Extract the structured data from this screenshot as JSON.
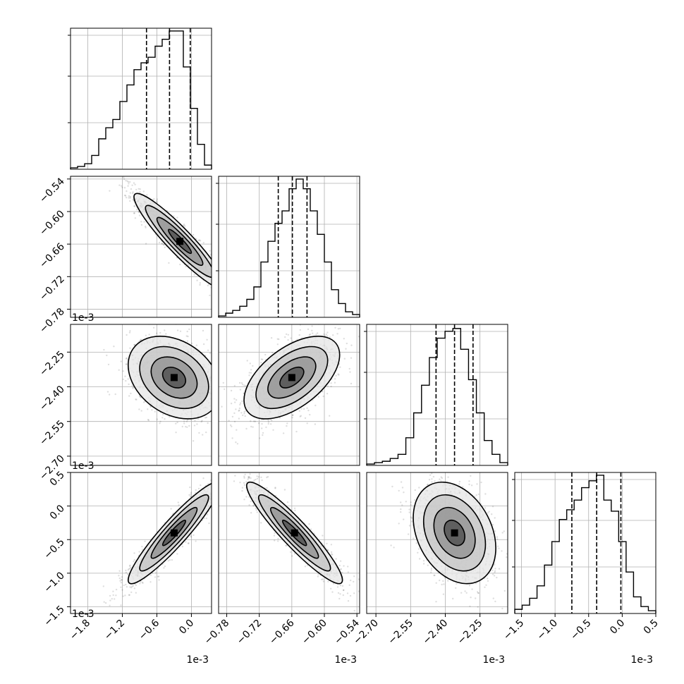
{
  "chart_data": {
    "type": "scatter",
    "subtype": "corner-plot",
    "grid": true,
    "parameters": [
      {
        "offset": "1e-3",
        "ticks": [
          "−1.8",
          "−1.2",
          "−0.6",
          "0.0"
        ],
        "range": [
          -2.1,
          0.35
        ]
      },
      {
        "offset": "1e-3",
        "ticks": [
          "−0.78",
          "−0.72",
          "−0.66",
          "−0.60",
          "−0.54"
        ],
        "range": [
          -0.795,
          -0.535
        ]
      },
      {
        "offset": "1e-3",
        "ticks": [
          "−2.70",
          "−2.55",
          "−2.40",
          "−2.25"
        ],
        "range": [
          -2.74,
          -2.13
        ]
      },
      {
        "offset": "1e-3",
        "ticks": [
          "−1.5",
          "−1.0",
          "−0.5",
          "0.0",
          "0.5"
        ],
        "range": [
          -1.6,
          0.5
        ]
      }
    ],
    "histograms": [
      {
        "param": 0,
        "quantiles": [
          -0.78,
          -0.38,
          -0.02
        ],
        "counts": [
          1,
          2,
          4,
          10,
          22,
          30,
          36,
          49,
          61,
          72,
          77,
          81,
          89,
          94,
          100,
          100,
          74,
          44,
          18,
          3
        ],
        "ymax": 102
      },
      {
        "param": 1,
        "quantiles": [
          -0.685,
          -0.659,
          -0.632
        ],
        "counts": [
          1,
          3,
          5,
          8,
          13,
          22,
          40,
          55,
          68,
          77,
          93,
          100,
          93,
          77,
          60,
          40,
          20,
          10,
          4,
          2
        ],
        "ymax": 102
      },
      {
        "param": 2,
        "quantiles": [
          -2.44,
          -2.36,
          -2.28
        ],
        "counts": [
          1,
          2,
          3,
          5,
          8,
          20,
          38,
          58,
          78,
          92,
          97,
          99,
          84,
          62,
          38,
          18,
          8,
          2
        ],
        "ymax": 102
      },
      {
        "param": 3,
        "quantiles": [
          -0.75,
          -0.38,
          -0.02
        ],
        "counts": [
          3,
          6,
          11,
          20,
          35,
          52,
          68,
          75,
          82,
          91,
          96,
          100,
          82,
          74,
          52,
          30,
          12,
          5,
          2
        ],
        "ymax": 102
      }
    ],
    "scatter_pairs": [
      {
        "x": 0,
        "y": 1,
        "center": [
          -0.2,
          -0.655
        ],
        "sigma": [
          0.38,
          0.042
        ],
        "corr": -0.93
      },
      {
        "x": 0,
        "y": 2,
        "center": [
          -0.3,
          -2.36
        ],
        "sigma": [
          0.38,
          0.085
        ],
        "corr": -0.3
      },
      {
        "x": 1,
        "y": 2,
        "center": [
          -0.66,
          -2.36
        ],
        "sigma": [
          0.042,
          0.085
        ],
        "corr": 0.55
      },
      {
        "x": 0,
        "y": 3,
        "center": [
          -0.3,
          -0.4
        ],
        "sigma": [
          0.38,
          0.36
        ],
        "corr": 0.93
      },
      {
        "x": 1,
        "y": 3,
        "center": [
          -0.655,
          -0.4
        ],
        "sigma": [
          0.042,
          0.36
        ],
        "corr": -0.93
      },
      {
        "x": 2,
        "y": 3,
        "center": [
          -2.36,
          -0.4
        ],
        "sigma": [
          0.085,
          0.36
        ],
        "corr": -0.3
      }
    ],
    "contour_levels": [
      0.5,
      1.0,
      1.5,
      2.0
    ]
  }
}
